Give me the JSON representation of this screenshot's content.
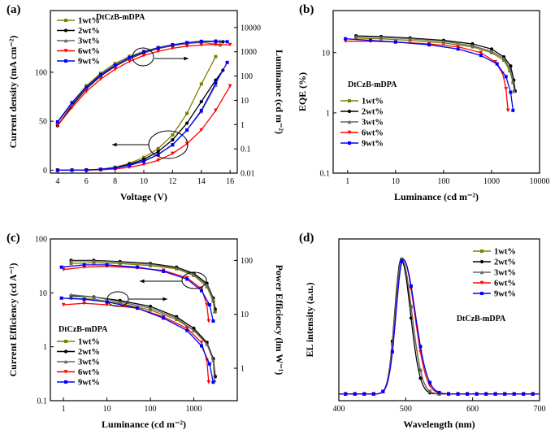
{
  "colors": {
    "1wt%": "#808000",
    "2wt%": "#000000",
    "3wt%": "#666666",
    "6wt%": "#ff0000",
    "9wt%": "#0000ff"
  },
  "chart_data": [
    {
      "type": "line",
      "panel_label": "(a)",
      "annotation": "DtCzB-mDPA",
      "xlabel": "Voltage (V)",
      "ylabel": "Current density (mA cm⁻²)",
      "y2label": "Luminance (cd m⁻²)",
      "xlim": [
        3.5,
        16.5
      ],
      "ylim": [
        -3,
        163
      ],
      "y2lim": [
        0.01,
        50000
      ],
      "y2scale": "log",
      "xticks": [
        4,
        6,
        8,
        10,
        12,
        14,
        16
      ],
      "yticks": [
        0,
        50,
        100
      ],
      "y2ticks": [
        0.01,
        0.1,
        1,
        10,
        100,
        1000,
        10000
      ],
      "xtick_labels": [
        "4",
        "6",
        "8",
        "10",
        "12",
        "14",
        "16"
      ],
      "ytick_labels": [
        "0",
        "50",
        "100"
      ],
      "y2tick_labels": [
        "0.01",
        "0.1",
        "1",
        "10",
        "100",
        "1000",
        "10000"
      ],
      "legend": {
        "position": "top-left",
        "entries": [
          "1wt%",
          "2wt%",
          "3wt%",
          "6wt%",
          "9wt%"
        ]
      },
      "x": [
        4,
        5,
        6,
        7,
        8,
        9,
        10,
        11,
        12,
        13,
        14,
        15,
        16
      ],
      "series": [
        {
          "name": "1wt%",
          "axis": "left",
          "x": [
            4,
            5,
            6,
            7,
            8,
            9,
            10,
            11,
            12,
            13,
            14,
            15
          ],
          "values": [
            0,
            0,
            0.2,
            1,
            3,
            7,
            13,
            22,
            36,
            58,
            88,
            116
          ]
        },
        {
          "name": "2wt%",
          "axis": "left",
          "x": [
            4,
            5,
            6,
            7,
            8,
            9,
            10,
            11,
            12,
            13,
            14,
            15,
            15.5
          ],
          "values": [
            0,
            0,
            0.2,
            0.8,
            2.5,
            6,
            11,
            19,
            31,
            48,
            70,
            92,
            102
          ]
        },
        {
          "name": "3wt%",
          "axis": "left",
          "x": [
            4,
            5,
            6,
            7,
            8,
            9,
            10,
            11,
            12,
            13,
            14,
            15
          ],
          "values": [
            0,
            0,
            0.2,
            0.8,
            2.2,
            5,
            9.5,
            16,
            26,
            41,
            60,
            87
          ]
        },
        {
          "name": "6wt%",
          "axis": "left",
          "x": [
            4,
            5,
            6,
            7,
            8,
            9,
            10,
            11,
            12,
            13,
            14,
            15,
            16
          ],
          "values": [
            0,
            0,
            0,
            0.4,
            1.2,
            3,
            6,
            10,
            17,
            27,
            41,
            61,
            86
          ]
        },
        {
          "name": "9wt%",
          "axis": "left",
          "x": [
            4,
            5,
            6,
            7,
            8,
            9,
            10,
            11,
            12,
            13,
            14,
            15,
            15.8
          ],
          "values": [
            0,
            0,
            0.2,
            0.8,
            2.2,
            5,
            9,
            16,
            26,
            41,
            61,
            89,
            110
          ]
        },
        {
          "name": "1wt%",
          "axis": "right",
          "x": [
            4,
            5,
            6,
            7,
            8,
            9,
            10,
            11,
            12,
            13,
            14,
            15,
            15.3
          ],
          "values": [
            1.2,
            8,
            40,
            130,
            330,
            650,
            1050,
            1500,
            1950,
            2250,
            2400,
            2100,
            1900
          ]
        },
        {
          "name": "2wt%",
          "axis": "right",
          "x": [
            4,
            5,
            6,
            7,
            8,
            9,
            10,
            11,
            12,
            13,
            14,
            15,
            15.5
          ],
          "values": [
            0.9,
            6,
            30,
            100,
            250,
            520,
            900,
            1350,
            1800,
            2200,
            2550,
            2700,
            2600
          ]
        },
        {
          "name": "3wt%",
          "axis": "right",
          "x": [
            4,
            5,
            6,
            7,
            8,
            9,
            10,
            11,
            12,
            13,
            14,
            15,
            15.3
          ],
          "values": [
            1.2,
            7,
            33,
            110,
            270,
            550,
            930,
            1380,
            1850,
            2250,
            2600,
            2800,
            2750
          ]
        },
        {
          "name": "6wt%",
          "axis": "right",
          "x": [
            4,
            5,
            6,
            7,
            8,
            9,
            10,
            11,
            12,
            13,
            14,
            15,
            16
          ],
          "values": [
            0.9,
            5,
            23,
            75,
            190,
            400,
            700,
            1050,
            1400,
            1700,
            1900,
            2000,
            1950
          ]
        },
        {
          "name": "9wt%",
          "axis": "right",
          "x": [
            4,
            5,
            6,
            7,
            8,
            9,
            10,
            11,
            12,
            13,
            14,
            15,
            15.8
          ],
          "values": [
            1.3,
            8,
            35,
            115,
            280,
            580,
            980,
            1450,
            1950,
            2400,
            2700,
            2750,
            2600
          ]
        }
      ]
    },
    {
      "type": "line",
      "panel_label": "(b)",
      "annotation": "DtCzB-mDPA",
      "xlabel": "Luminance (cd m⁻²)",
      "ylabel": "EQE (%)",
      "xscale": "log",
      "yscale": "log",
      "xlim": [
        0.5,
        10000
      ],
      "ylim": [
        0.1,
        50
      ],
      "xticks": [
        1,
        10,
        100,
        1000,
        10000
      ],
      "yticks": [
        0.1,
        1,
        10
      ],
      "xtick_labels": [
        "1",
        "10",
        "100",
        "1000",
        "10000"
      ],
      "ytick_labels": [
        "0.1",
        "1",
        "10"
      ],
      "legend": {
        "position": "center-left",
        "entries": [
          "1wt%",
          "2wt%",
          "3wt%",
          "6wt%",
          "9wt%"
        ]
      },
      "series": [
        {
          "name": "1wt%",
          "x": [
            1.5,
            5,
            20,
            100,
            400,
            1000,
            1800,
            2400,
            2800,
            3000
          ],
          "values": [
            17.5,
            17,
            16,
            14.5,
            12.5,
            10,
            7.5,
            5,
            3.2,
            2.3
          ]
        },
        {
          "name": "2wt%",
          "x": [
            1.5,
            5,
            20,
            100,
            400,
            1000,
            1800,
            2500,
            2900,
            3100
          ],
          "values": [
            19,
            18.5,
            17.5,
            16,
            14,
            11.5,
            8.5,
            6,
            3.5,
            2.3
          ]
        },
        {
          "name": "3wt%",
          "x": [
            1.5,
            5,
            20,
            100,
            400,
            1000,
            1800,
            2400,
            2800,
            3000
          ],
          "values": [
            18.5,
            18,
            17,
            15.5,
            13,
            10.5,
            8,
            5.5,
            3.3,
            2.3
          ]
        },
        {
          "name": "6wt%",
          "x": [
            0.9,
            3,
            10,
            50,
            200,
            600,
            1200,
            1700,
            2000,
            2200
          ],
          "values": [
            15.5,
            15.5,
            15,
            14,
            12.5,
            10,
            7,
            4.5,
            2.5,
            1.1
          ]
        },
        {
          "name": "9wt%",
          "x": [
            0.9,
            3,
            10,
            50,
            200,
            600,
            1300,
            2000,
            2500,
            2800
          ],
          "values": [
            17,
            16,
            15,
            13.5,
            11.5,
            9,
            6.5,
            4,
            2.2,
            1.1
          ]
        }
      ]
    },
    {
      "type": "line",
      "panel_label": "(c)",
      "annotation": "DtCzB-mDPA",
      "xlabel": "Luminance (cd m⁻²)",
      "ylabel": "Current Efficiency (cd A⁻¹)",
      "y2label": "Power Efficiency (lm W⁻¹)",
      "xscale": "log",
      "yscale": "log",
      "y2scale": "log",
      "xlim": [
        0.5,
        10000
      ],
      "ylim": [
        0.1,
        100
      ],
      "y2lim": [
        0.25,
        250
      ],
      "xticks": [
        1,
        10,
        100,
        1000
      ],
      "yticks": [
        0.1,
        1,
        10,
        100
      ],
      "y2ticks": [
        1,
        10,
        100
      ],
      "xtick_labels": [
        "1",
        "10",
        "100",
        "1000"
      ],
      "ytick_labels": [
        "0.1",
        "1",
        "10",
        "100"
      ],
      "y2tick_labels": [
        "1",
        "10",
        "100"
      ],
      "legend": {
        "position": "bottom-left",
        "entries": [
          "1wt%",
          "2wt%",
          "3wt%",
          "6wt%",
          "9wt%"
        ]
      },
      "series": [
        {
          "name": "1wt%",
          "axis": "left",
          "x": [
            1.5,
            5,
            20,
            100,
            400,
            1000,
            2000,
            2800,
            3100
          ],
          "values": [
            35,
            36,
            35,
            32,
            28,
            21,
            13,
            7,
            4.5
          ]
        },
        {
          "name": "2wt%",
          "axis": "left",
          "x": [
            1.5,
            5,
            20,
            100,
            400,
            1000,
            2000,
            2800,
            3100
          ],
          "values": [
            40,
            40,
            38,
            35,
            30,
            23,
            15,
            8,
            5
          ]
        },
        {
          "name": "3wt%",
          "axis": "left",
          "x": [
            1.5,
            5,
            20,
            100,
            400,
            1000,
            2000,
            2800,
            3000
          ],
          "values": [
            39,
            39,
            37,
            34,
            29,
            22,
            14,
            7.5,
            4.5
          ]
        },
        {
          "name": "6wt%",
          "axis": "left",
          "x": [
            1,
            3,
            10,
            50,
            200,
            700,
            1500,
            2000,
            2200
          ],
          "values": [
            27,
            30,
            31,
            29,
            26,
            19,
            12,
            6,
            3
          ]
        },
        {
          "name": "9wt%",
          "axis": "left",
          "x": [
            0.9,
            3,
            10,
            50,
            200,
            700,
            1500,
            2300,
            2800
          ],
          "values": [
            30,
            33,
            33,
            30,
            25,
            18,
            11,
            6,
            3
          ]
        },
        {
          "name": "1wt%",
          "axis": "right",
          "x": [
            1.5,
            5,
            20,
            100,
            400,
            1000,
            2000,
            2800,
            3100
          ],
          "values": [
            20,
            19,
            16,
            12,
            8,
            5,
            3,
            1.5,
            0.7
          ]
        },
        {
          "name": "2wt%",
          "axis": "right",
          "x": [
            1.5,
            5,
            20,
            100,
            400,
            1000,
            2000,
            2800,
            3100
          ],
          "values": [
            22,
            21,
            18,
            14,
            9,
            5.5,
            3,
            1.5,
            0.7
          ]
        },
        {
          "name": "3wt%",
          "axis": "right",
          "x": [
            1.5,
            5,
            20,
            100,
            400,
            1000,
            2000,
            2800,
            3000
          ],
          "values": [
            23,
            21,
            17,
            13,
            8.5,
            5,
            2.8,
            1.4,
            0.6
          ]
        },
        {
          "name": "6wt%",
          "axis": "right",
          "x": [
            1,
            3,
            10,
            50,
            200,
            700,
            1500,
            2000,
            2200
          ],
          "values": [
            15,
            16,
            15,
            13,
            9,
            5.5,
            3,
            1.4,
            0.55
          ]
        },
        {
          "name": "9wt%",
          "axis": "right",
          "x": [
            0.9,
            3,
            10,
            50,
            200,
            700,
            1500,
            2300,
            2800
          ],
          "values": [
            20,
            19,
            17,
            13,
            8.5,
            5,
            2.6,
            1.2,
            0.55
          ]
        }
      ]
    },
    {
      "type": "line",
      "panel_label": "(d)",
      "annotation": "DtCzB-mDPA",
      "xlabel": "Wavelength (nm)",
      "ylabel": "EL intensity (a.u.)",
      "xlim": [
        400,
        700
      ],
      "ylim": [
        -0.05,
        1.15
      ],
      "xticks": [
        400,
        500,
        600,
        700
      ],
      "xtick_labels": [
        "400",
        "500",
        "600",
        "700"
      ],
      "legend": {
        "position": "top-right",
        "entries": [
          "1wt%",
          "2wt%",
          "3wt%",
          "6wt%",
          "9wt%"
        ]
      },
      "series": [
        {
          "name": "1wt%",
          "peak": 494,
          "width_left": 10,
          "width_right": 15
        },
        {
          "name": "2wt%",
          "peak": 493,
          "width_left": 9.5,
          "width_right": 14
        },
        {
          "name": "3wt%",
          "peak": 494,
          "width_left": 10,
          "width_right": 15
        },
        {
          "name": "6wt%",
          "peak": 496,
          "width_left": 10.5,
          "width_right": 17
        },
        {
          "name": "9wt%",
          "peak": 496,
          "width_left": 10.5,
          "width_right": 18
        }
      ]
    }
  ]
}
